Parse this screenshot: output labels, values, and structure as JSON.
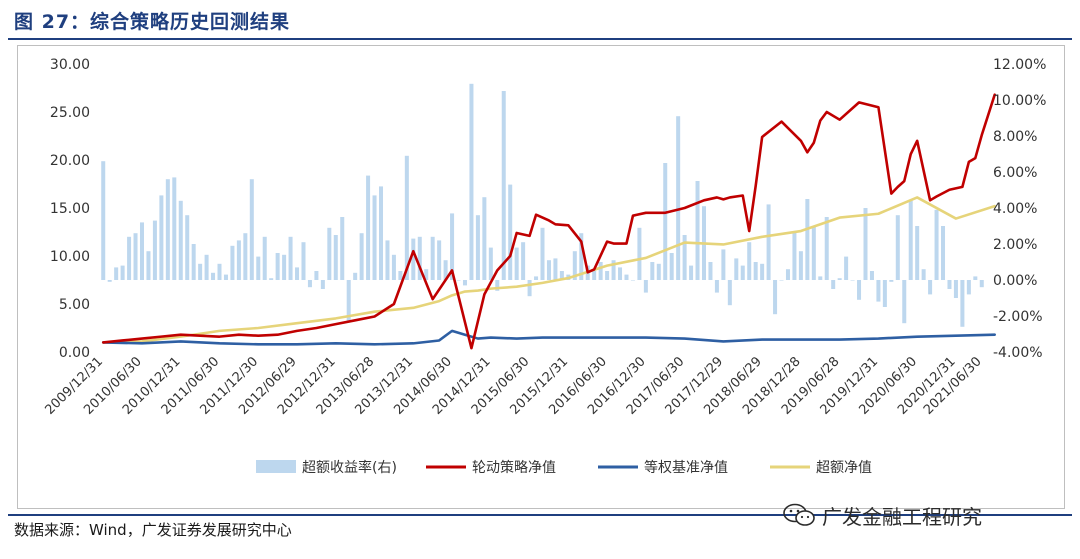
{
  "title": "图 27：综合策略历史回测结果",
  "source": "数据来源：Wind，广发证券发展研究中心",
  "watermark": "广发金融工程研究",
  "colors": {
    "title": "#1f3f7f",
    "rule": "#1f3f7f",
    "excess_return_bar": "#bdd7ee",
    "rotation_strategy": "#c00000",
    "equal_weight_benchmark": "#2e5fa3",
    "excess_nav": "#e6d47a"
  },
  "chart_data": {
    "type": "bar+line",
    "legend_position": "bottom",
    "grid": false,
    "left_axis": {
      "ylim": [
        0,
        30
      ],
      "ticks": [
        "0.00",
        "5.00",
        "10.00",
        "15.00",
        "20.00",
        "25.00",
        "30.00"
      ]
    },
    "right_axis": {
      "ylim": [
        -4,
        12
      ],
      "ticks": [
        "-4.00%",
        "-2.00%",
        "0.00%",
        "2.00%",
        "4.00%",
        "6.00%",
        "8.00%",
        "10.00%",
        "12.00%"
      ]
    },
    "x_ticks": [
      "2009/12/31",
      "2010/06/30",
      "2010/12/31",
      "2011/06/30",
      "2011/12/30",
      "2012/06/29",
      "2012/12/31",
      "2013/06/28",
      "2013/12/31",
      "2014/06/30",
      "2014/12/31",
      "2015/06/30",
      "2015/12/31",
      "2016/06/30",
      "2016/12/30",
      "2017/06/30",
      "2017/12/29",
      "2018/06/29",
      "2018/12/28",
      "2019/06/28",
      "2019/12/31",
      "2020/06/30",
      "2020/12/31",
      "2021/06/30"
    ],
    "months_per_tick": 6,
    "series": [
      {
        "name": "超额收益率(右)",
        "type": "bar",
        "axis": "right",
        "values": [
          6.6,
          -0.1,
          0.7,
          0.8,
          2.4,
          2.6,
          3.2,
          1.6,
          3.3,
          4.7,
          5.6,
          5.7,
          4.4,
          3.6,
          2.0,
          0.9,
          1.4,
          0.4,
          0.9,
          0.3,
          1.9,
          2.2,
          2.6,
          5.6,
          1.3,
          2.4,
          0.1,
          1.5,
          1.4,
          2.4,
          0.7,
          2.1,
          -0.4,
          0.5,
          -0.5,
          2.9,
          2.5,
          3.5,
          -2.3,
          0.4,
          2.6,
          5.8,
          4.7,
          5.2,
          2.2,
          1.4,
          0.5,
          6.9,
          2.3,
          2.4,
          0.6,
          2.4,
          2.2,
          1.1,
          3.7,
          0.0,
          -0.3,
          10.9,
          3.6,
          4.6,
          1.8,
          -0.6,
          10.5,
          5.3,
          1.8,
          2.1,
          -0.9,
          0.2,
          2.9,
          1.1,
          1.2,
          0.5,
          0.3,
          1.6,
          2.6,
          0.8,
          0.5,
          1.0,
          0.5,
          1.1,
          0.7,
          0.3,
          0.0,
          2.9,
          -0.7,
          1.0,
          0.9,
          6.5,
          1.5,
          9.1,
          2.5,
          0.8,
          5.5,
          4.1,
          1.0,
          -0.7,
          1.7,
          -1.4,
          1.2,
          0.8,
          2.1,
          1.0,
          0.9,
          4.2,
          -1.9,
          0.0,
          0.6,
          2.7,
          1.6,
          4.5,
          3.0,
          0.2,
          3.5,
          -0.5,
          0.1,
          1.3,
          0.0,
          -1.1,
          4.0,
          0.5,
          -1.2,
          -1.5,
          -0.1,
          3.6,
          -2.4,
          4.4,
          3.0,
          0.6,
          -0.8,
          3.9,
          3.0,
          -0.5,
          -1.0,
          -2.6,
          -0.8,
          0.2,
          -0.4
        ],
        "color": "#bdd7ee"
      },
      {
        "name": "轮动策略净值",
        "type": "line",
        "axis": "left",
        "x_index": [
          0,
          3,
          6,
          9,
          12,
          15,
          18,
          21,
          24,
          27,
          30,
          33,
          36,
          39,
          42,
          45,
          48,
          51,
          54,
          57,
          59,
          61,
          63,
          64,
          66,
          67,
          69,
          70,
          72,
          74,
          75,
          76,
          78,
          79,
          81,
          82,
          84,
          87,
          90,
          93,
          95,
          96,
          97,
          99,
          100,
          101,
          102,
          105,
          108,
          109,
          110,
          111,
          112,
          114,
          117,
          120,
          122,
          123,
          124,
          125,
          126,
          128,
          129,
          131,
          133,
          134,
          135,
          136,
          138
        ],
        "values": [
          1.0,
          1.2,
          1.4,
          1.6,
          1.8,
          1.7,
          1.6,
          1.8,
          1.7,
          1.8,
          2.2,
          2.5,
          2.9,
          3.3,
          3.7,
          5.0,
          10.5,
          5.5,
          8.5,
          0.4,
          6.0,
          8.5,
          10.0,
          12.4,
          12.1,
          14.3,
          13.7,
          13.3,
          13.2,
          11.5,
          8.3,
          8.6,
          11.5,
          11.3,
          11.3,
          14.2,
          14.5,
          14.5,
          15.0,
          15.8,
          16.1,
          15.9,
          16.1,
          16.3,
          12.6,
          17.3,
          22.4,
          24.0,
          22.0,
          20.8,
          21.8,
          24.1,
          25.0,
          24.2,
          26.0,
          25.5,
          16.5,
          17.2,
          17.8,
          20.6,
          22.0,
          15.8,
          16.2,
          16.9,
          17.2,
          19.8,
          20.2,
          22.6,
          26.8
        ],
        "color": "#c00000"
      },
      {
        "name": "等权基准净值",
        "type": "line",
        "axis": "left",
        "x_index": [
          0,
          6,
          12,
          18,
          24,
          30,
          36,
          42,
          48,
          52,
          54,
          56,
          58,
          60,
          64,
          68,
          72,
          78,
          84,
          90,
          96,
          102,
          108,
          114,
          120,
          126,
          132,
          138
        ],
        "values": [
          1.0,
          0.9,
          1.1,
          0.9,
          0.8,
          0.8,
          0.9,
          0.8,
          0.9,
          1.2,
          2.2,
          1.8,
          1.4,
          1.5,
          1.4,
          1.5,
          1.5,
          1.5,
          1.5,
          1.4,
          1.1,
          1.3,
          1.3,
          1.3,
          1.4,
          1.6,
          1.7,
          1.8
        ],
        "color": "#2e5fa3"
      },
      {
        "name": "超额净值",
        "type": "line",
        "axis": "left",
        "x_index": [
          0,
          6,
          12,
          18,
          24,
          30,
          36,
          42,
          48,
          52,
          54,
          56,
          58,
          60,
          64,
          68,
          72,
          78,
          84,
          90,
          96,
          102,
          108,
          114,
          120,
          126,
          132,
          138
        ],
        "values": [
          1.0,
          1.1,
          1.6,
          2.2,
          2.5,
          3.0,
          3.5,
          4.2,
          4.6,
          5.3,
          5.9,
          6.3,
          6.4,
          6.6,
          6.8,
          7.2,
          7.7,
          9.0,
          9.8,
          11.4,
          11.2,
          12.0,
          12.6,
          14.0,
          14.4,
          16.1,
          13.9,
          15.2
        ],
        "color": "#e6d47a"
      }
    ]
  }
}
